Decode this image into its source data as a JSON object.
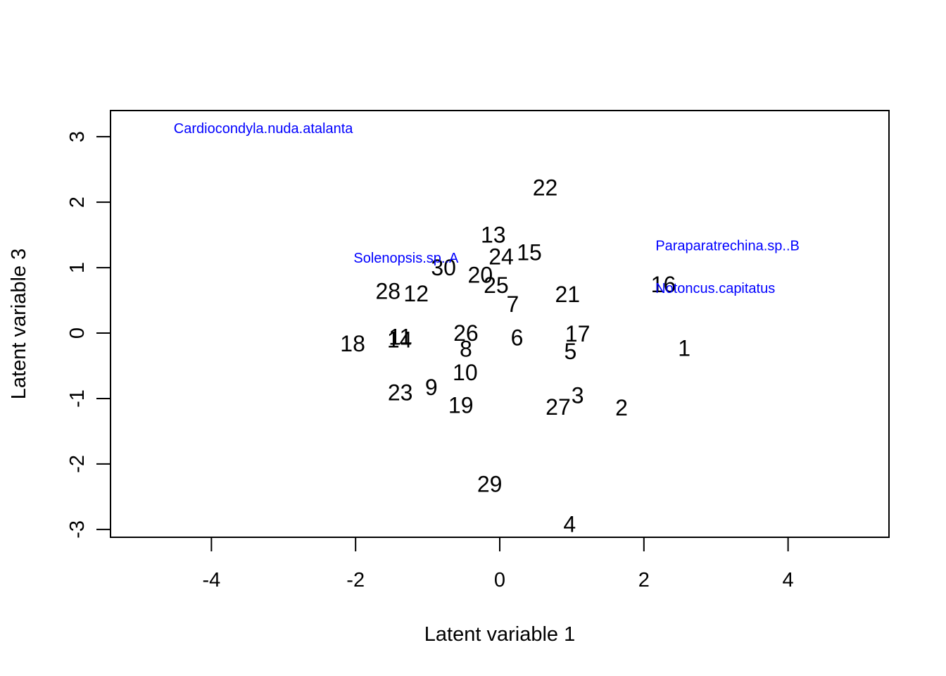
{
  "chart_data": {
    "type": "scatter",
    "title": "",
    "xlabel": "Latent variable  1",
    "ylabel": "Latent variable  3",
    "xlim": [
      -5.4,
      5.4
    ],
    "ylim": [
      -3.12,
      3.4
    ],
    "xticks": [
      -4,
      -2,
      0,
      2,
      4
    ],
    "yticks": [
      -3,
      -2,
      -1,
      0,
      1,
      2,
      3
    ],
    "grid": false,
    "legend": "none",
    "sites": [
      {
        "label": "1",
        "x": 2.56,
        "y": -0.23
      },
      {
        "label": "2",
        "x": 1.69,
        "y": -1.14
      },
      {
        "label": "3",
        "x": 1.08,
        "y": -0.95
      },
      {
        "label": "4",
        "x": 0.97,
        "y": -2.92
      },
      {
        "label": "5",
        "x": 0.98,
        "y": -0.28
      },
      {
        "label": "6",
        "x": 0.24,
        "y": -0.07
      },
      {
        "label": "7",
        "x": 0.18,
        "y": 0.44
      },
      {
        "label": "8",
        "x": -0.47,
        "y": -0.24
      },
      {
        "label": "9",
        "x": -0.95,
        "y": -0.83
      },
      {
        "label": "10",
        "x": -0.48,
        "y": -0.6
      },
      {
        "label": "11",
        "x": -1.38,
        "y": -0.06
      },
      {
        "label": "12",
        "x": -1.16,
        "y": 0.6
      },
      {
        "label": "13",
        "x": -0.09,
        "y": 1.5
      },
      {
        "label": "14",
        "x": -1.39,
        "y": -0.1
      },
      {
        "label": "15",
        "x": 0.41,
        "y": 1.23
      },
      {
        "label": "16",
        "x": 2.27,
        "y": 0.74
      },
      {
        "label": "17",
        "x": 1.08,
        "y": -0.01
      },
      {
        "label": "18",
        "x": -2.04,
        "y": -0.16
      },
      {
        "label": "19",
        "x": -0.54,
        "y": -1.1
      },
      {
        "label": "20",
        "x": -0.27,
        "y": 0.89
      },
      {
        "label": "21",
        "x": 0.94,
        "y": 0.59
      },
      {
        "label": "22",
        "x": 0.63,
        "y": 2.22
      },
      {
        "label": "23",
        "x": -1.38,
        "y": -0.91
      },
      {
        "label": "24",
        "x": 0.02,
        "y": 1.17
      },
      {
        "label": "25",
        "x": -0.05,
        "y": 0.73
      },
      {
        "label": "26",
        "x": -0.47,
        "y": 0.0
      },
      {
        "label": "27",
        "x": 0.81,
        "y": -1.13
      },
      {
        "label": "28",
        "x": -1.55,
        "y": 0.64
      },
      {
        "label": "29",
        "x": -0.14,
        "y": -2.31
      },
      {
        "label": "30",
        "x": -0.78,
        "y": 1.0
      }
    ],
    "species": [
      {
        "label": "Cardiocondyla.nuda.atalanta",
        "x": -3.28,
        "y": 3.12
      },
      {
        "label": "Solenopsis.sp..A",
        "x": -1.3,
        "y": 1.14
      },
      {
        "label": "Paraparatrechina.sp..B",
        "x": 3.16,
        "y": 1.33
      },
      {
        "label": "Notoncus.capitatus",
        "x": 2.99,
        "y": 0.68
      }
    ],
    "colors": {
      "sites": "#000000",
      "species": "#0000ff",
      "axes": "#000000"
    }
  }
}
